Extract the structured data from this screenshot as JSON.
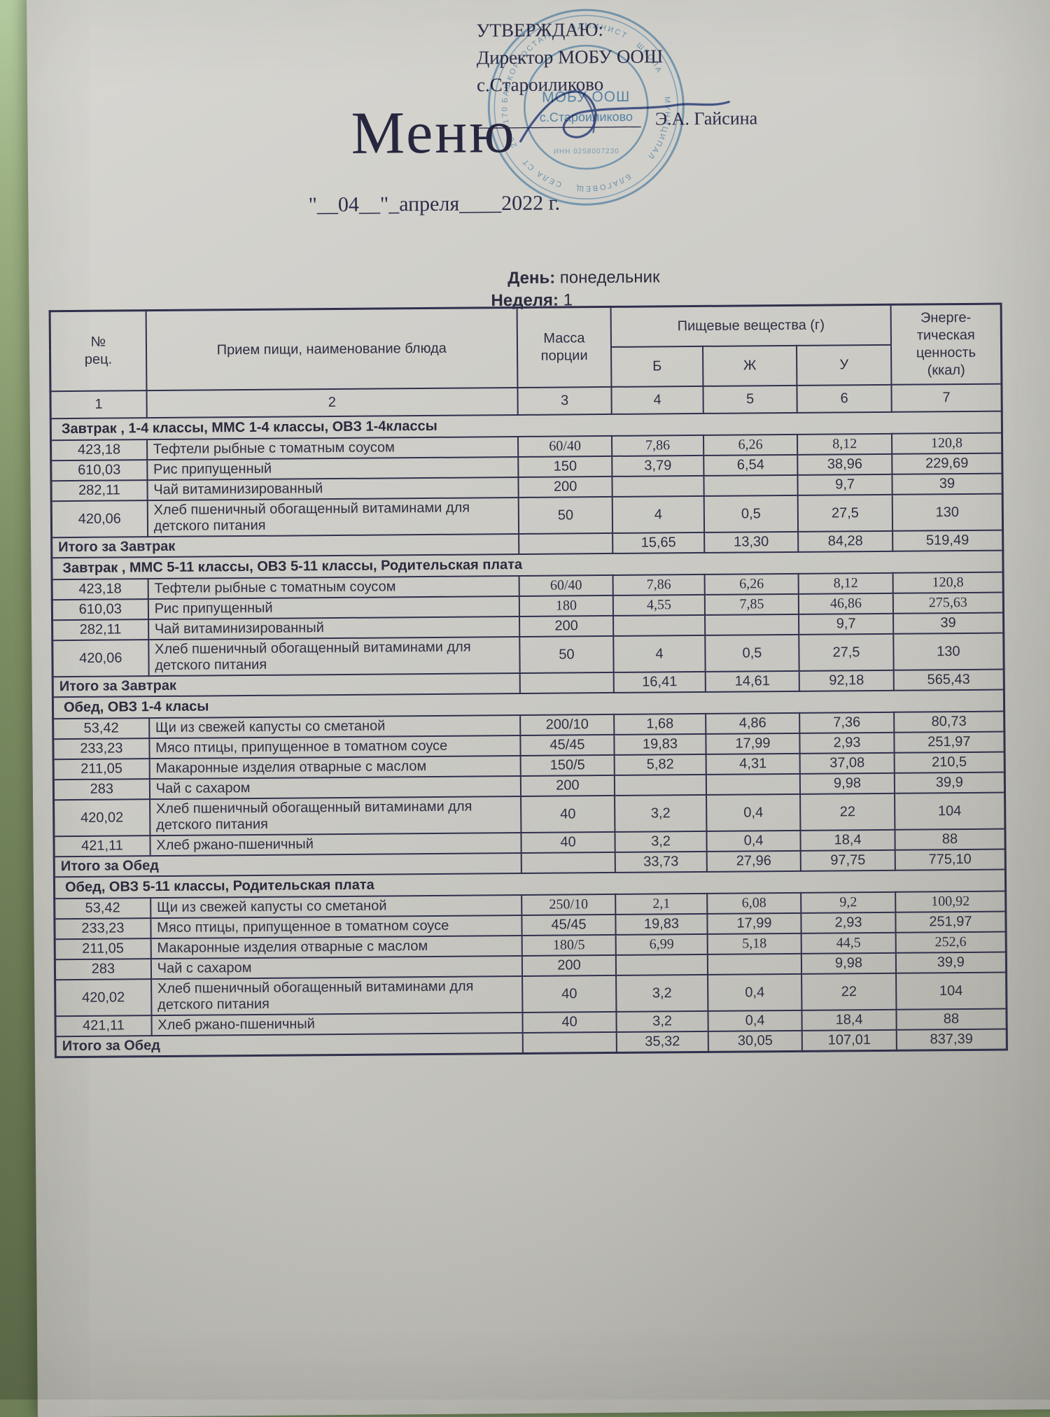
{
  "approval": {
    "line1": "УТВЕРЖДАЮ:",
    "line2": "Директор МОБУ ООШ с.Староиликово",
    "underline": "__________________",
    "signer": "Э.А. Гайсина"
  },
  "stamp": {
    "color": "#4d8fc4",
    "center_line1": "МОБУ ООШ",
    "center_line2": "с.Староиликово",
    "center_line3": "ИНН 0258007230",
    "ring_fragments": [
      "БАШКОРТОСТАН",
      "АДМИНИСТ",
      "ШКОЛА",
      "МУНИЦИПАЛ",
      "БЛАГОВЕЩ",
      "СЕЛА СТ",
      "2020170"
    ]
  },
  "title": "Меню",
  "date_line": "\"__04__\"_апреля____2022 г.",
  "meta": {
    "day_label": "День:",
    "day_value": "понедельник",
    "week_label": "Неделя:",
    "week_value": "1"
  },
  "table": {
    "headers": {
      "num": "№\nрец.",
      "dish": "Прием пищи, наименование блюда",
      "mass": "Масса\nпорции",
      "nutrients": "Пищевые вещества (г)",
      "b": "Б",
      "zh": "Ж",
      "u": "У",
      "energy": "Энерге-\nтическая\nценность\n(ккал)"
    },
    "column_numbers": [
      "1",
      "2",
      "3",
      "4",
      "5",
      "6",
      "7"
    ],
    "sections": [
      {
        "title": "Завтрак , 1-4 классы, ММС 1-4 классы, ОВЗ 1-4классы",
        "rows": [
          {
            "num": "423,18",
            "dish": "Тефтели рыбные с томатным соусом",
            "mass": "60/40",
            "b": "7,86",
            "zh": "6,26",
            "u": "8,12",
            "kcal": "120,8",
            "serif": true
          },
          {
            "num": "610,03",
            "dish": "Рис припущенный",
            "mass": "150",
            "b": "3,79",
            "zh": "6,54",
            "u": "38,96",
            "kcal": "229,69",
            "serif": false
          },
          {
            "num": "282,11",
            "dish": "Чай витаминизированный",
            "mass": "200",
            "b": "",
            "zh": "",
            "u": "9,7",
            "kcal": "39",
            "serif": false
          },
          {
            "num": "420,06",
            "dish": "Хлеб пшеничный обогащенный витаминами для детского питания",
            "mass": "50",
            "b": "4",
            "zh": "0,5",
            "u": "27,5",
            "kcal": "130",
            "serif": false
          }
        ],
        "total": {
          "label": "Итого за Завтрак",
          "b": "15,65",
          "zh": "13,30",
          "u": "84,28",
          "kcal": "519,49"
        }
      },
      {
        "title": "Завтрак , ММС 5-11 классы, ОВЗ 5-11 классы, Родительская плата",
        "rows": [
          {
            "num": "423,18",
            "dish": "Тефтели рыбные с томатным соусом",
            "mass": "60/40",
            "b": "7,86",
            "zh": "6,26",
            "u": "8,12",
            "kcal": "120,8",
            "serif": true
          },
          {
            "num": "610,03",
            "dish": "Рис припущенный",
            "mass": "180",
            "b": "4,55",
            "zh": "7,85",
            "u": "46,86",
            "kcal": "275,63",
            "serif": true
          },
          {
            "num": "282,11",
            "dish": "Чай витаминизированный",
            "mass": "200",
            "b": "",
            "zh": "",
            "u": "9,7",
            "kcal": "39",
            "serif": false
          },
          {
            "num": "420,06",
            "dish": "Хлеб пшеничный обогащенный витаминами для детского питания",
            "mass": "50",
            "b": "4",
            "zh": "0,5",
            "u": "27,5",
            "kcal": "130",
            "serif": false
          }
        ],
        "total": {
          "label": "Итого за Завтрак",
          "b": "16,41",
          "zh": "14,61",
          "u": "92,18",
          "kcal": "565,43"
        }
      },
      {
        "title": "Обед, ОВЗ 1-4 класы",
        "rows": [
          {
            "num": "53,42",
            "dish": "Щи из свежей капусты со сметаной",
            "mass": "200/10",
            "b": "1,68",
            "zh": "4,86",
            "u": "7,36",
            "kcal": "80,73",
            "serif": false
          },
          {
            "num": "233,23",
            "dish": "Мясо птицы, припущенное в томатном соусе",
            "mass": "45/45",
            "b": "19,83",
            "zh": "17,99",
            "u": "2,93",
            "kcal": "251,97",
            "serif": false
          },
          {
            "num": "211,05",
            "dish": "Макаронные изделия отварные с маслом",
            "mass": "150/5",
            "b": "5,82",
            "zh": "4,31",
            "u": "37,08",
            "kcal": "210,5",
            "serif": false
          },
          {
            "num": "283",
            "dish": "Чай с сахаром",
            "mass": "200",
            "b": "",
            "zh": "",
            "u": "9,98",
            "kcal": "39,9",
            "serif": false
          },
          {
            "num": "420,02",
            "dish": "Хлеб пшеничный обогащенный витаминами для детского питания",
            "mass": "40",
            "b": "3,2",
            "zh": "0,4",
            "u": "22",
            "kcal": "104",
            "serif": false
          },
          {
            "num": "421,11",
            "dish": "Хлеб ржано-пшеничный",
            "mass": "40",
            "b": "3,2",
            "zh": "0,4",
            "u": "18,4",
            "kcal": "88",
            "serif": false
          }
        ],
        "total": {
          "label": "Итого за Обед",
          "b": "33,73",
          "zh": "27,96",
          "u": "97,75",
          "kcal": "775,10"
        }
      },
      {
        "title": "Обед, ОВЗ 5-11 классы, Родительская плата",
        "rows": [
          {
            "num": "53,42",
            "dish": "Щи из свежей капусты со сметаной",
            "mass": "250/10",
            "b": "2,1",
            "zh": "6,08",
            "u": "9,2",
            "kcal": "100,92",
            "serif": true
          },
          {
            "num": "233,23",
            "dish": "Мясо птицы, припущенное в томатном соусе",
            "mass": "45/45",
            "b": "19,83",
            "zh": "17,99",
            "u": "2,93",
            "kcal": "251,97",
            "serif": false
          },
          {
            "num": "211,05",
            "dish": "Макаронные изделия отварные с маслом",
            "mass": "180/5",
            "b": "6,99",
            "zh": "5,18",
            "u": "44,5",
            "kcal": "252,6",
            "serif": true
          },
          {
            "num": "283",
            "dish": "Чай с сахаром",
            "mass": "200",
            "b": "",
            "zh": "",
            "u": "9,98",
            "kcal": "39,9",
            "serif": false
          },
          {
            "num": "420,02",
            "dish": "Хлеб пшеничный обогащенный витаминами для детского питания",
            "mass": "40",
            "b": "3,2",
            "zh": "0,4",
            "u": "22",
            "kcal": "104",
            "serif": false
          },
          {
            "num": "421,11",
            "dish": "Хлеб ржано-пшеничный",
            "mass": "40",
            "b": "3,2",
            "zh": "0,4",
            "u": "18,4",
            "kcal": "88",
            "serif": false
          }
        ],
        "total": {
          "label": "Итого за Обед",
          "b": "35,32",
          "zh": "30,05",
          "u": "107,01",
          "kcal": "837,39"
        }
      }
    ]
  }
}
